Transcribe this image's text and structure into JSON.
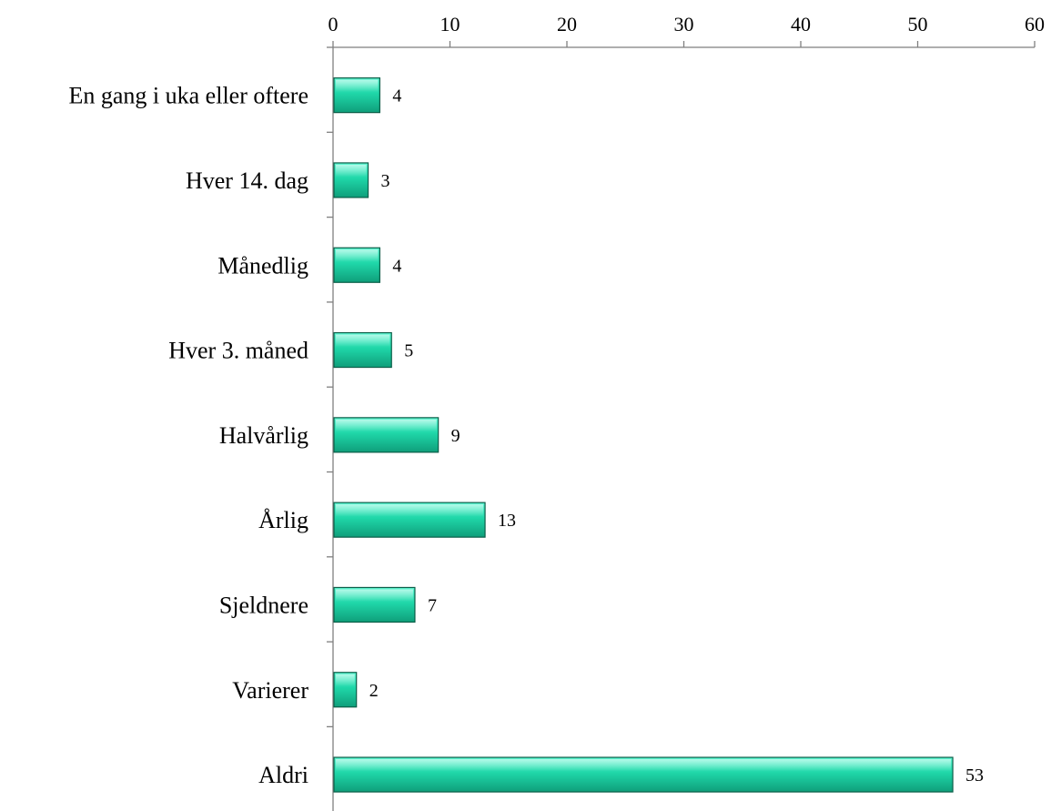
{
  "chart_data": {
    "type": "bar",
    "orientation": "horizontal",
    "categories": [
      "En gang i uka eller oftere",
      "Hver 14. dag",
      "Månedlig",
      "Hver 3. måned",
      "Halvårlig",
      "Årlig",
      "Sjeldnere",
      "Varierer",
      "Aldri"
    ],
    "values": [
      4,
      3,
      4,
      5,
      9,
      13,
      7,
      2,
      53
    ],
    "data_labels": [
      "4",
      "3",
      "4",
      "5",
      "9",
      "13",
      "7",
      "2",
      "53"
    ],
    "xaxis": {
      "position": "top",
      "range": [
        0,
        60
      ],
      "ticks": [
        0,
        10,
        20,
        30,
        40,
        50,
        60
      ],
      "tick_labels": [
        "0",
        "10",
        "20",
        "30",
        "40",
        "50",
        "60"
      ]
    },
    "title": "",
    "xlabel": "",
    "ylabel": "",
    "grid": false,
    "legend": "none",
    "colors": {
      "bar_top": "#5ff7d2",
      "bar_mid": "#1fd6a8",
      "bar_bottom": "#0f9e7a",
      "bar_edge": "#0b5e48",
      "axis": "#7f7f7f",
      "text": "#000000"
    }
  }
}
